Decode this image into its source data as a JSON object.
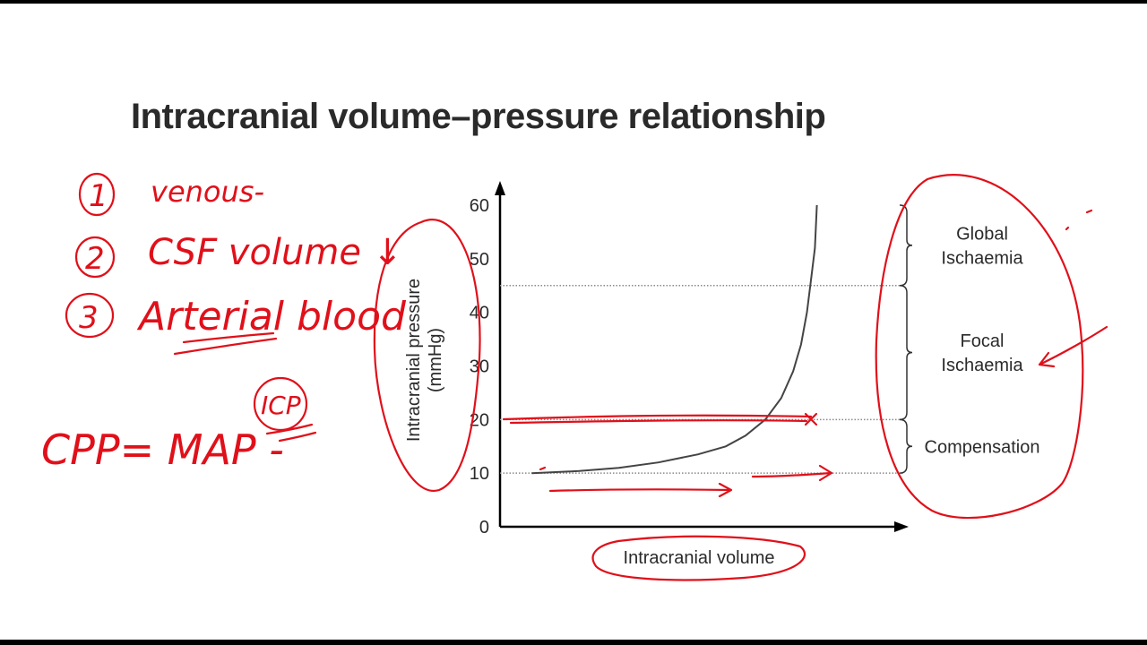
{
  "slide": {
    "title": "Intracranial volume–pressure relationship"
  },
  "colors": {
    "annotation": "#e0101a",
    "curve": "#444444",
    "axis": "#000000",
    "text": "#2a2a2a"
  },
  "chart_data": {
    "type": "line",
    "title": "Intracranial volume–pressure relationship",
    "xlabel": "Intracranial volume",
    "ylabel_lines": [
      "Intracranial pressure",
      "(mmHg)"
    ],
    "ylim": [
      0,
      60
    ],
    "yticks": [
      0,
      10,
      20,
      30,
      40,
      50,
      60
    ],
    "ytick_labels": [
      "0",
      "10",
      "20",
      "30",
      "40",
      "50",
      "60"
    ],
    "xlim": [
      0,
      1
    ],
    "grid": false,
    "reference_lines": [
      {
        "y": 10,
        "style": "dotted"
      },
      {
        "y": 20,
        "style": "dotted"
      },
      {
        "y": 45,
        "style": "dotted"
      }
    ],
    "series": [
      {
        "x": [
          0.08,
          0.2,
          0.3,
          0.4,
          0.5,
          0.57,
          0.62,
          0.67,
          0.71,
          0.74,
          0.76,
          0.775,
          0.785,
          0.795,
          0.8
        ],
        "values": [
          10,
          10.4,
          11,
          12,
          13.5,
          15,
          17,
          20,
          24,
          29,
          34,
          40,
          46,
          52,
          60
        ]
      }
    ],
    "regions": [
      {
        "label_lines": [
          "Global",
          "Ischaemia"
        ],
        "y_range": [
          45,
          60
        ]
      },
      {
        "label_lines": [
          "Focal",
          "Ischaemia"
        ],
        "y_range": [
          20,
          45
        ]
      },
      {
        "label_lines": [
          "Compensation"
        ],
        "y_range": [
          10,
          20
        ]
      }
    ]
  },
  "annotations": {
    "list": [
      {
        "num": "1",
        "text": "venous-"
      },
      {
        "num": "2",
        "text": "CSF volume ↓"
      },
      {
        "num": "3",
        "text": "Arterial blood"
      }
    ],
    "formula": {
      "text": "CPP= MAP -",
      "circled": "ICP"
    }
  }
}
